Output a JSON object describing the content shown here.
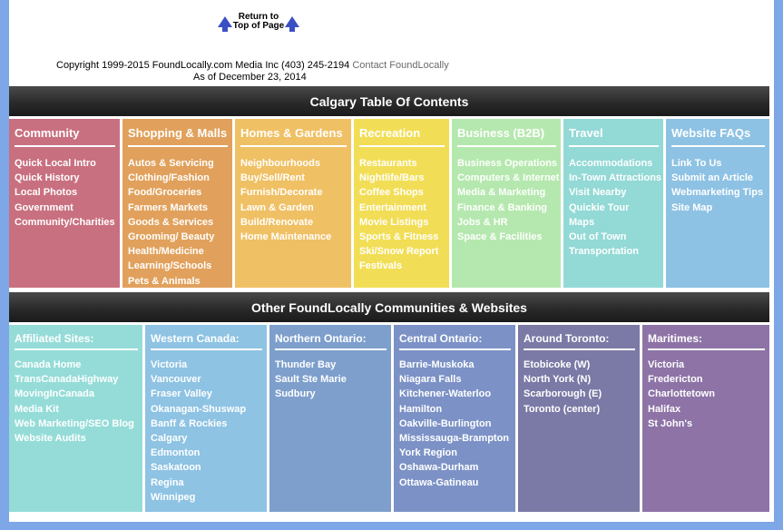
{
  "return_top": {
    "label_line1": "Return to",
    "label_line2": "Top of Page"
  },
  "copyright": {
    "text": "Copyright 1999-2015 FoundLocally.com Media Inc (403) 245-2194 ",
    "contact": "Contact FoundLocally",
    "as_of": "As of  December 23, 2014"
  },
  "toc": {
    "title": "Calgary Table Of Contents",
    "columns": [
      {
        "title": "Community",
        "color": "#c97080",
        "items": [
          "Quick Local Intro",
          "Quick History",
          "Local Photos",
          "Government",
          "Community/Charities"
        ]
      },
      {
        "title": "Shopping & Malls",
        "color": "#e1a15c",
        "items": [
          "Autos & Servicing",
          "Clothing/Fashion",
          "Food/Groceries",
          "Farmers Markets",
          "Goods & Services",
          "Grooming/ Beauty",
          "Health/Medicine",
          "Learning/Schools",
          "Pets & Animals"
        ]
      },
      {
        "title": "Homes & Gardens",
        "color": "#f0c064",
        "items": [
          "Neighbourhoods",
          "Buy/Sell/Rent",
          "Furnish/Decorate",
          "Lawn & Garden",
          "Build/Renovate",
          "Home Maintenance"
        ]
      },
      {
        "title": "Recreation",
        "color": "#f2de56",
        "items": [
          "Restaurants",
          "Nightlife/Bars",
          "Coffee Shops",
          "Entertainment",
          "Movie Listings",
          "Sports & Fitness",
          "Ski/Snow Report",
          "Festivals"
        ]
      },
      {
        "title": "Business (B2B)",
        "color": "#b5e8ae",
        "items": [
          "Business Operations",
          "Computers & Internet",
          "Media & Marketing",
          "Finance & Banking",
          "Jobs & HR",
          "Space & Facilities"
        ]
      },
      {
        "title": "Travel",
        "color": "#93d9d6",
        "items": [
          "Accommodations",
          "In-Town Attractions",
          "Visit Nearby",
          "Quickie Tour",
          "Maps",
          "Out of Town",
          "Transportation"
        ]
      },
      {
        "title": "Website FAQs",
        "color": "#8ec2e4",
        "items": [
          "Link To Us",
          "Submit an Article",
          "Webmarketing Tips",
          "Site Map"
        ]
      }
    ]
  },
  "other": {
    "title": "Other FoundLocally Communities & Websites",
    "columns": [
      {
        "title": "Affiliated Sites:",
        "color": "#95dcd8",
        "items": [
          "Canada Home",
          "TransCanadaHighway",
          "MovingInCanada",
          "Media Kit",
          "Web Marketing/SEO Blog",
          "Website Audits"
        ]
      },
      {
        "title": "Western Canada:",
        "color": "#8ec3e3",
        "items": [
          "Victoria",
          "Vancouver",
          "Fraser Valley",
          "Okanagan-Shuswap",
          "Banff & Rockies",
          "Calgary",
          "Edmonton",
          "Saskatoon",
          "Regina",
          "Winnipeg"
        ]
      },
      {
        "title": "Northern Ontario:",
        "color": "#7e9fcc",
        "items": [
          "Thunder Bay",
          "Sault Ste Marie",
          "Sudbury"
        ]
      },
      {
        "title": "Central Ontario:",
        "color": "#7c92c6",
        "items": [
          "Barrie-Muskoka",
          "Niagara Falls",
          "Kitchener-Waterloo",
          "Hamilton",
          "Oakville-Burlington",
          "Mississauga-Brampton",
          "York Region",
          "Oshawa-Durham",
          "Ottawa-Gatineau"
        ]
      },
      {
        "title": "Around Toronto:",
        "color": "#7b79a5",
        "items": [
          "Etobicoke (W)",
          "North York (N)",
          "Scarborough (E)",
          "Toronto (center)"
        ]
      },
      {
        "title": "Maritimes:",
        "color": "#8d73a6",
        "items": [
          "Victoria",
          "Fredericton",
          "Charlottetown",
          "Halifax",
          "St John's"
        ]
      }
    ]
  }
}
